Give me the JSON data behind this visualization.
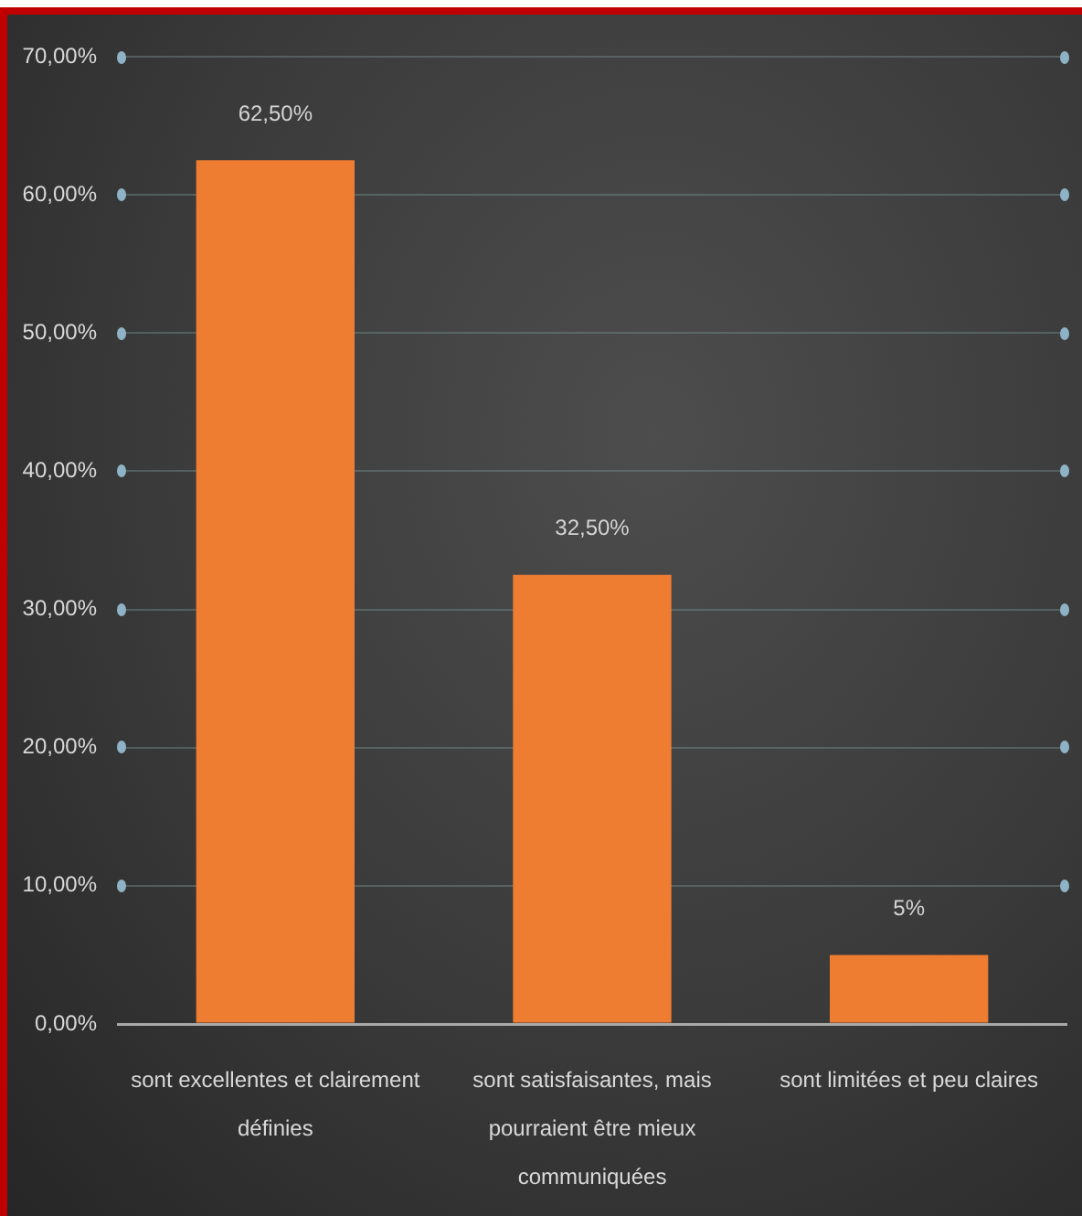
{
  "chart_data": {
    "type": "bar",
    "categories": [
      "sont excellentes et clairement définies",
      "sont satisfaisantes, mais pourraient être mieux communiquées",
      "sont limitées et peu claires"
    ],
    "values": [
      62.5,
      32.5,
      5
    ],
    "value_labels": [
      "62,50%",
      "32,50%",
      "5%"
    ],
    "color": "#ee7d31",
    "ylim": [
      0,
      70
    ],
    "yticks": [
      {
        "value": 0,
        "label": "0,00%"
      },
      {
        "value": 10,
        "label": "10,00%"
      },
      {
        "value": 20,
        "label": "20,00%"
      },
      {
        "value": 30,
        "label": "30,00%"
      },
      {
        "value": 40,
        "label": "40,00%"
      },
      {
        "value": 50,
        "label": "50,00%"
      },
      {
        "value": 60,
        "label": "60,00%"
      },
      {
        "value": 70,
        "label": "70,00%"
      }
    ],
    "grid": "y"
  }
}
